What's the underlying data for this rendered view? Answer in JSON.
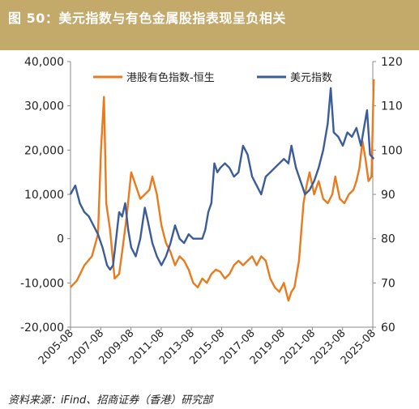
{
  "header": {
    "title": "图 50：美元指数与有色金属股指表现呈负相关"
  },
  "footer": {
    "source": "资料来源：iFind、招商证券（香港）研究部"
  },
  "chart_data": {
    "type": "line",
    "x_tick_labels": [
      "2005-08",
      "2007-08",
      "2009-08",
      "2011-08",
      "2013-08",
      "2015-08",
      "2017-08",
      "2019-08",
      "2021-08",
      "2023-08",
      "2025-08"
    ],
    "x_range": [
      "2005-08",
      "2025-08"
    ],
    "y_left": {
      "ticks": [
        "-20,000",
        "-10,000",
        "0",
        "10,000",
        "20,000",
        "30,000",
        "40,000"
      ],
      "range": [
        -20000,
        40000
      ]
    },
    "y_right": {
      "ticks": [
        "60",
        "70",
        "80",
        "90",
        "100",
        "110",
        "120"
      ],
      "range": [
        60,
        120
      ]
    },
    "legend_placement": "top",
    "grid": false,
    "series": [
      {
        "name": "港股有色指数-恒生",
        "axis": "left",
        "color": "#e97a1d",
        "x": [
          2005.58,
          2006.0,
          2006.5,
          2007.0,
          2007.4,
          2007.6,
          2007.8,
          2007.95,
          2008.2,
          2008.5,
          2008.8,
          2009.0,
          2009.3,
          2009.6,
          2009.9,
          2010.2,
          2010.5,
          2010.8,
          2011.0,
          2011.3,
          2011.6,
          2011.9,
          2012.2,
          2012.5,
          2012.8,
          2013.1,
          2013.4,
          2013.7,
          2014.0,
          2014.3,
          2014.6,
          2014.9,
          2015.2,
          2015.5,
          2015.8,
          2016.1,
          2016.4,
          2016.7,
          2017.0,
          2017.3,
          2017.6,
          2017.9,
          2018.2,
          2018.5,
          2018.8,
          2019.1,
          2019.4,
          2019.7,
          2020.0,
          2020.2,
          2020.4,
          2020.7,
          2021.0,
          2021.2,
          2021.4,
          2021.7,
          2022.0,
          2022.3,
          2022.6,
          2022.9,
          2023.1,
          2023.4,
          2023.7,
          2024.0,
          2024.3,
          2024.5,
          2024.7,
          2024.9,
          2025.1,
          2025.3,
          2025.5,
          2025.65
        ],
        "values": [
          -11000,
          -9500,
          -6000,
          -4000,
          1000,
          20000,
          32000,
          8000,
          2000,
          -9000,
          -8000,
          -3000,
          5000,
          15000,
          12000,
          9000,
          10000,
          11000,
          14000,
          10000,
          3000,
          -1000,
          -3000,
          -6000,
          -4000,
          -5000,
          -7000,
          -10000,
          -11000,
          -9000,
          -10000,
          -8000,
          -7000,
          -7500,
          -9000,
          -8000,
          -6000,
          -5000,
          -6000,
          -5000,
          -4000,
          -6000,
          -4000,
          -5000,
          -9000,
          -11000,
          -12000,
          -10000,
          -14000,
          -12000,
          -11000,
          -5000,
          8000,
          12000,
          15000,
          10000,
          13000,
          9000,
          8000,
          10000,
          14000,
          9000,
          8000,
          10000,
          11000,
          13000,
          16000,
          22000,
          18000,
          13000,
          14000,
          36000
        ]
      },
      {
        "name": "美元指数",
        "axis": "right",
        "color": "#3b5c99",
        "x": [
          2005.58,
          2005.9,
          2006.2,
          2006.5,
          2006.8,
          2007.1,
          2007.4,
          2007.7,
          2008.0,
          2008.2,
          2008.4,
          2008.6,
          2008.8,
          2009.0,
          2009.2,
          2009.4,
          2009.6,
          2009.9,
          2010.2,
          2010.5,
          2010.7,
          2011.0,
          2011.3,
          2011.6,
          2011.9,
          2012.2,
          2012.5,
          2012.8,
          2013.1,
          2013.4,
          2013.7,
          2014.0,
          2014.3,
          2014.5,
          2014.7,
          2014.9,
          2015.1,
          2015.3,
          2015.5,
          2015.8,
          2016.1,
          2016.4,
          2016.7,
          2017.0,
          2017.3,
          2017.6,
          2017.9,
          2018.2,
          2018.5,
          2018.8,
          2019.1,
          2019.4,
          2019.7,
          2020.0,
          2020.2,
          2020.5,
          2020.8,
          2021.1,
          2021.4,
          2021.7,
          2022.0,
          2022.3,
          2022.6,
          2022.8,
          2023.0,
          2023.3,
          2023.6,
          2023.9,
          2024.2,
          2024.5,
          2024.8,
          2025.0,
          2025.2,
          2025.4,
          2025.65
        ],
        "values": [
          90,
          92,
          88,
          86,
          85,
          83,
          81,
          78,
          74,
          73,
          74,
          80,
          86,
          85,
          88,
          82,
          78,
          76,
          80,
          87,
          84,
          79,
          76,
          74,
          76,
          79,
          83,
          80,
          79,
          81,
          80,
          80,
          80,
          82,
          86,
          88,
          97,
          95,
          96,
          97,
          96,
          94,
          95,
          101,
          99,
          94,
          92,
          90,
          94,
          95,
          96,
          97,
          98,
          97,
          101,
          96,
          93,
          90,
          91,
          93,
          96,
          100,
          106,
          114,
          104,
          103,
          101,
          104,
          103,
          105,
          101,
          105,
          109,
          99,
          98
        ]
      }
    ]
  }
}
